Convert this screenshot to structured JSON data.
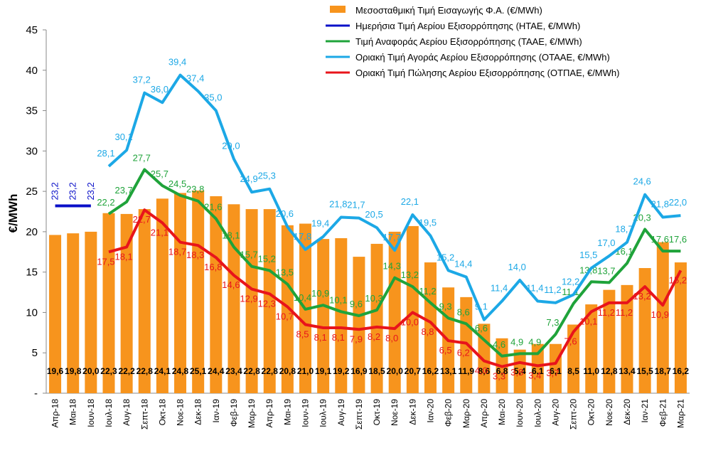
{
  "chart_data": {
    "type": "combo",
    "y_label": "€/MWh",
    "categories": [
      "Απρ-18",
      "Μαι-18",
      "Ιουν-18",
      "Ιουλ-18",
      "Αυγ-18",
      "Σεπτ-18",
      "Οκτ-18",
      "Νοε-18",
      "Δεκ-18",
      "Ιαν-19",
      "Φεβ-19",
      "Μαρ-19",
      "Απρ-19",
      "Μαι-19",
      "Ιουν-19",
      "Ιουλ-19",
      "Αυγ-19",
      "Σεπτ-19",
      "Οκτ-19",
      "Νοε-19",
      "Δεκ-19",
      "Ιαν-20",
      "Φεβ-20",
      "Μαρ-20",
      "Απρ-20",
      "Μαι-20",
      "Ιουν-20",
      "Ιουλ-20",
      "Αυγ-20",
      "Σεπτ-20",
      "Οκτ-20",
      "Νοε-20",
      "Δεκ-20",
      "Ιαν-21",
      "Φεβ-21",
      "Μαρ-21"
    ],
    "ylim": [
      0,
      45
    ],
    "yticks": [
      {
        "value": 0,
        "label": "-"
      },
      5,
      10,
      15,
      20,
      25,
      30,
      35,
      40,
      45
    ],
    "grid": false,
    "legend": "top-right",
    "series": [
      {
        "name": "Μεσοσταθμική Τιμή Εισαγωγής Φ.Α. (€/MWh)",
        "type": "bar",
        "color": "#f7941d",
        "values": [
          19.6,
          19.8,
          20.0,
          22.3,
          22.2,
          22.8,
          24.1,
          24.8,
          25.1,
          24.4,
          23.4,
          22.8,
          22.8,
          20.8,
          21.0,
          19.1,
          19.2,
          16.9,
          18.5,
          20.0,
          20.7,
          16.2,
          13.1,
          11.9,
          8.6,
          6.8,
          5.4,
          6.1,
          6.1,
          8.5,
          11.0,
          12.8,
          13.4,
          15.5,
          18.7,
          16.2
        ],
        "value_labels": [
          "19,6",
          "19,8",
          "20,0",
          "22,3",
          "22,2",
          "22,8",
          "24,1",
          "24,8",
          "25,1",
          "24,4",
          "23,4",
          "22,8",
          "22,8",
          "20,8",
          "21,0",
          "19,1",
          "19,2",
          "16,9",
          "18,5",
          "20,0",
          "20,7",
          "16,2",
          "13,1",
          "11,9",
          "8,6",
          "6,8",
          "5,4",
          "6,1",
          "6,1",
          "8,5",
          "11,0",
          "12,8",
          "13,4",
          "15,5",
          "18,7",
          "16,2"
        ]
      },
      {
        "name": "Ημερήσια Τιμή Αερίου Εξισορρόπησης (ΗΤΑΕ, €/MWh)",
        "type": "line",
        "color": "#0a10c8",
        "values": [
          23.2,
          23.2,
          23.2,
          null,
          null,
          null,
          null,
          null,
          null,
          null,
          null,
          null,
          null,
          null,
          null,
          null,
          null,
          null,
          null,
          null,
          null,
          null,
          null,
          null,
          null,
          null,
          null,
          null,
          null,
          null,
          null,
          null,
          null,
          null,
          null,
          null
        ],
        "value_labels": [
          "23,2",
          "23,2",
          "23,2",
          null,
          null,
          null,
          null,
          null,
          null,
          null,
          null,
          null,
          null,
          null,
          null,
          null,
          null,
          null,
          null,
          null,
          null,
          null,
          null,
          null,
          null,
          null,
          null,
          null,
          null,
          null,
          null,
          null,
          null,
          null,
          null,
          null
        ]
      },
      {
        "name": "Τιμή Αναφοράς Αερίου Εξισορρόπησης (ΤΑΑΕ, €/MWh)",
        "type": "line",
        "color": "#1fa33a",
        "values": [
          null,
          null,
          null,
          22.2,
          23.7,
          27.7,
          25.7,
          24.5,
          23.8,
          21.6,
          18.1,
          15.7,
          15.2,
          13.5,
          10.4,
          10.9,
          10.1,
          9.6,
          10.3,
          14.3,
          13.2,
          11.2,
          9.3,
          8.6,
          6.6,
          4.6,
          4.9,
          4.9,
          7.3,
          11.1,
          13.8,
          13.7,
          16.1,
          20.3,
          17.6,
          17.6
        ],
        "value_labels": [
          null,
          null,
          null,
          "22,2",
          "23,7",
          "27,7",
          "25,7",
          "24,5",
          "23,8",
          "21,6",
          "18,1",
          "15,7",
          "15,2",
          "13,5",
          "10,4",
          "10,9",
          "10,1",
          "9,6",
          "10,3",
          "14,3",
          "13,2",
          "11,2",
          "9,3",
          "8,6",
          "6,6",
          "4,6",
          "4,9",
          "4,9",
          "7,3",
          "11,1",
          "13,8",
          "13,7",
          "16,1",
          "20,3",
          "17,6",
          "17,6"
        ]
      },
      {
        "name": "Οριακή Τιμή Αγοράς Αερίου Εξισορρόπησης  (ΟΤΑΑΕ, €/MWh)",
        "type": "line",
        "color": "#1ca8e6",
        "values": [
          null,
          null,
          null,
          28.1,
          30.1,
          37.2,
          36.0,
          39.4,
          37.4,
          35.0,
          29.0,
          24.9,
          25.3,
          20.6,
          17.8,
          19.4,
          21.8,
          21.7,
          20.5,
          17.7,
          22.1,
          19.5,
          15.2,
          14.4,
          9.1,
          11.4,
          14.0,
          11.4,
          11.2,
          12.2,
          15.5,
          17.0,
          18.7,
          24.6,
          21.8,
          22.0
        ],
        "value_labels": [
          null,
          null,
          null,
          "28,1",
          "30,1",
          "37,2",
          "36,0",
          "39,4",
          "37,4",
          "35,0",
          "29,0",
          "24,9",
          "25,3",
          "20,6",
          "17,8",
          "19,4",
          "21,8",
          "21,7",
          "20,5",
          "17,7",
          "22,1",
          "19,5",
          "15,2",
          "14,4",
          "9,1",
          "11,4",
          "14,0",
          "11,4",
          "11,2",
          "12,2",
          "15,5",
          "17,0",
          "18,7",
          "24,6",
          "21,8",
          "22,0"
        ]
      },
      {
        "name": "Οριακή Τιμή Πώλησης Αερίου Εξισορρόπησης (ΟΤΠΑΕ, €/MWh)",
        "type": "line",
        "color": "#e8141b",
        "values": [
          null,
          null,
          null,
          17.5,
          18.1,
          22.7,
          21.1,
          18.7,
          18.3,
          16.8,
          14.6,
          12.9,
          12.3,
          10.7,
          8.5,
          8.1,
          8.1,
          7.9,
          8.2,
          8.0,
          10.0,
          8.8,
          6.5,
          6.2,
          4.0,
          3.3,
          3.8,
          3.4,
          3.7,
          7.6,
          10.1,
          11.2,
          11.2,
          13.2,
          10.9,
          15.2
        ],
        "value_labels": [
          null,
          null,
          null,
          "17,5",
          "18,1",
          "22,7",
          "21,1",
          "18,7",
          "18,3",
          "16,8",
          "14,6",
          "12,9",
          "12,3",
          "10,7",
          "8,5",
          "8,1",
          "8,1",
          "7,9",
          "8,2",
          "8,0",
          "10,0",
          "8,8",
          "6,5",
          "6,2",
          "4,0",
          "3,3",
          "3,8",
          "3,4",
          "3,7",
          "7,6",
          "10,1",
          "11,2",
          "11,2",
          "13,2",
          "10,9",
          "15,2"
        ]
      }
    ]
  }
}
